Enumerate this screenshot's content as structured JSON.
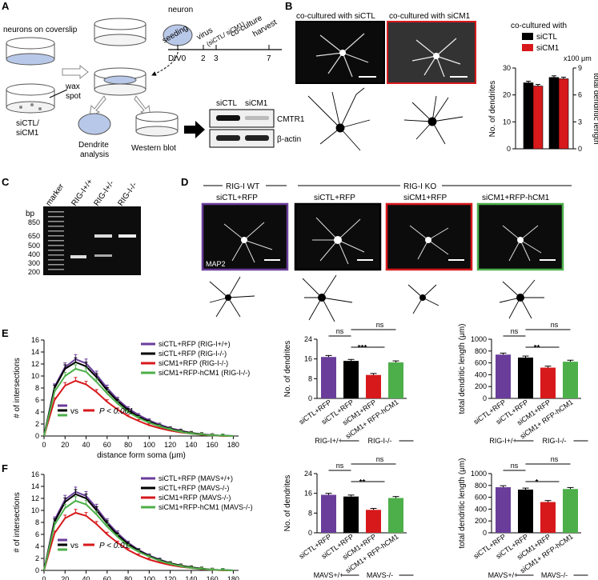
{
  "panels": {
    "A": "A",
    "B": "B",
    "C": "C",
    "D": "D",
    "E": "E",
    "F": "F"
  },
  "colors": {
    "purple": "#6a3d9a",
    "black": "#000000",
    "red": "#d7191c",
    "green": "#4daf4a"
  },
  "panelA": {
    "neurons_on_coverslip": "neurons on coverslip",
    "neuron": "neuron",
    "wax": "wax",
    "spot": "spot",
    "siCTL_siCM1_1": "siCTL/",
    "siCTL_siCM1_2": "siCM1",
    "dendrite_1": "Dendrite",
    "dendrite_2": "analysis",
    "western": "Western blot",
    "timeline": {
      "seeding": "seeding",
      "virus": "virus",
      "virus_sub": "(siCTL/ siCM1)",
      "coculture": "co-culture",
      "harvest": "harvest",
      "div0": "DIV0",
      "d2": "2",
      "d3": "3",
      "d7": "7"
    },
    "blot": {
      "siCTL": "siCTL",
      "siCM1": "siCM1",
      "cmtr1": "CMTR1",
      "actin": "β-actin"
    }
  },
  "panelB": {
    "img_left_title": "co-cultured with siCTL",
    "img_right_title": "co-cultured with siCM1",
    "legend_title": "co-cultured with",
    "x100": "x100 μm",
    "chart_data": {
      "type": "bar",
      "categories": [
        "No. of dendrites",
        "total dendritic length"
      ],
      "series": [
        {
          "name": "siCTL",
          "values": [
            24.5,
            26.5
          ]
        },
        {
          "name": "siCM1",
          "values": [
            23.3,
            26.0
          ]
        }
      ],
      "ylabel_left": "No. of dendrites",
      "ylabel_right": "total dendritic length",
      "left_ticks": [
        "0",
        "10",
        "20",
        "30"
      ],
      "right_ticks": [
        "0",
        "3",
        "6",
        "9"
      ],
      "ylim": [
        0,
        30
      ]
    }
  },
  "panelC": {
    "marker": "marker",
    "lane1": "RIG-I+/+",
    "lane2": "RIG-I+/-",
    "lane3": "RIG-I-/-",
    "bp": "bp",
    "sizes": [
      "850",
      "650",
      "500",
      "400",
      "300",
      "200"
    ]
  },
  "panelD": {
    "wt": "RIG-I WT",
    "ko": "RIG-I KO",
    "img1": "siCTL+RFP",
    "img2": "siCTL+RFP",
    "img3": "siCM1+RFP",
    "img4": "siCM1+RFP-hCM1",
    "map2": "MAP2"
  },
  "panelE": {
    "chart_data": {
      "type": "line",
      "x": [
        0,
        10,
        20,
        30,
        40,
        50,
        60,
        70,
        80,
        90,
        100,
        110,
        120,
        130,
        140,
        150,
        160,
        170,
        180
      ],
      "series": [
        {
          "name": "siCTL+RFP (RIG-I+/+)",
          "values": [
            0,
            8.2,
            11.5,
            12.8,
            12.1,
            10.2,
            8.0,
            6.1,
            4.6,
            3.5,
            2.6,
            1.9,
            1.3,
            0.9,
            0.5,
            0.3,
            0.15,
            0.05,
            0
          ]
        },
        {
          "name": "siCTL+RFP (RIG-I-/-)",
          "values": [
            0,
            8.0,
            11.2,
            12.3,
            11.6,
            9.8,
            7.6,
            5.8,
            4.3,
            3.2,
            2.4,
            1.7,
            1.2,
            0.8,
            0.5,
            0.3,
            0.1,
            0.05,
            0
          ]
        },
        {
          "name": "siCM1+RFP (RIG-I-/-)",
          "values": [
            0,
            6.0,
            8.4,
            9.2,
            8.6,
            7.3,
            5.7,
            4.4,
            3.3,
            2.5,
            1.8,
            1.3,
            0.9,
            0.6,
            0.4,
            0.2,
            0.1,
            0,
            0
          ]
        },
        {
          "name": "siCM1+RFP-hCM1 (RIG-I-/-)",
          "values": [
            0,
            7.4,
            10.0,
            11.2,
            10.7,
            9.0,
            7.1,
            5.4,
            4.0,
            3.0,
            2.2,
            1.6,
            1.1,
            0.7,
            0.4,
            0.25,
            0.1,
            0.05,
            0
          ]
        }
      ],
      "xlabel": "distance form soma (μm)",
      "ylabel": "# of intersections",
      "xticks": [
        "0",
        "20",
        "40",
        "60",
        "80",
        "100",
        "120",
        "140",
        "160",
        "180"
      ],
      "yticks": [
        "0",
        "2",
        "4",
        "6",
        "8",
        "10",
        "12",
        "14",
        "16"
      ],
      "xlim": [
        0,
        185
      ],
      "ylim": [
        0,
        16
      ]
    },
    "vs": "vs",
    "pval": "P < 0.001",
    "dend_chart": {
      "type": "bar",
      "categories": [
        "siCTL+RFP",
        "siCTL+RFP",
        "siCM1+RFP",
        "siCM1+ RFP-hCM1"
      ],
      "values": [
        16.8,
        15.2,
        9.5,
        14.6
      ],
      "ylabel": "No. of dendrites",
      "yticks": [
        "0",
        "8",
        "16",
        "24"
      ],
      "ylim": [
        0,
        24
      ]
    },
    "len_chart": {
      "type": "bar",
      "categories": [
        "siCTL+RFP",
        "siCTL+RFP",
        "siCM1+RFP",
        "siCM1+ RFP-hCM1"
      ],
      "values": [
        740,
        690,
        520,
        620
      ],
      "ylabel": "total dendritic length (μm)",
      "yticks": [
        "0",
        "200",
        "400",
        "600",
        "800",
        "1000"
      ],
      "ylim": [
        0,
        1000
      ]
    },
    "geno1": "RIG-I+/+",
    "geno2": "RIG-I-/-",
    "ns": "ns",
    "sig_dend": "***",
    "sig_len": "**"
  },
  "panelF": {
    "chart_data": {
      "type": "line",
      "x": [
        0,
        10,
        20,
        30,
        40,
        50,
        60,
        70,
        80,
        90,
        100,
        110,
        120,
        130,
        140,
        150,
        160,
        170,
        180
      ],
      "series": [
        {
          "name": "siCTL+RFP (MAVS+/+)",
          "values": [
            0,
            8.4,
            11.8,
            13.1,
            12.4,
            10.4,
            8.1,
            6.2,
            4.6,
            3.4,
            2.5,
            1.8,
            1.2,
            0.8,
            0.5,
            0.3,
            0.1,
            0.05,
            0
          ]
        },
        {
          "name": "siCTL+RFP (MAVS-/-)",
          "values": [
            0,
            8.1,
            11.4,
            12.7,
            12.0,
            10.0,
            7.8,
            5.9,
            4.4,
            3.3,
            2.4,
            1.7,
            1.2,
            0.8,
            0.5,
            0.3,
            0.1,
            0.05,
            0
          ]
        },
        {
          "name": "siCM1+RFP (MAVS-/-)",
          "values": [
            0,
            6.2,
            8.7,
            9.6,
            9.1,
            7.7,
            6.0,
            4.6,
            3.4,
            2.5,
            1.8,
            1.3,
            0.9,
            0.6,
            0.4,
            0.2,
            0.1,
            0,
            0
          ]
        },
        {
          "name": "siCM1+RFP-hCM1 (MAVS-/-)",
          "values": [
            0,
            7.6,
            10.4,
            11.6,
            11.0,
            9.3,
            7.3,
            5.6,
            4.1,
            3.1,
            2.3,
            1.6,
            1.1,
            0.7,
            0.4,
            0.25,
            0.1,
            0.05,
            0
          ]
        }
      ],
      "xlabel": "distance form soma (μm)",
      "ylabel": "# of intersections",
      "xticks": [
        "0",
        "20",
        "40",
        "60",
        "80",
        "100",
        "120",
        "140",
        "160",
        "180"
      ],
      "yticks": [
        "0",
        "2",
        "4",
        "6",
        "8",
        "10",
        "12",
        "14",
        "16"
      ],
      "xlim": [
        0,
        185
      ],
      "ylim": [
        0,
        16
      ]
    },
    "vs": "vs",
    "pval": "P < 0.01",
    "dend_chart": {
      "type": "bar",
      "categories": [
        "siCTL+RFP",
        "siCTL+RFP",
        "siCM1+RFP",
        "siCM1+ RFP-hCM1"
      ],
      "values": [
        15.4,
        14.7,
        9.3,
        14.1
      ],
      "ylabel": "No. of dendrites",
      "yticks": [
        "0",
        "8",
        "16",
        "24"
      ],
      "ylim": [
        0,
        24
      ]
    },
    "len_chart": {
      "type": "bar",
      "categories": [
        "siCTL+RFP",
        "siCTL+RFP",
        "siCM1+RFP",
        "siCM1+ RFP-hCM1"
      ],
      "values": [
        770,
        730,
        520,
        740
      ],
      "ylabel": "total dendritic length (μm)",
      "yticks": [
        "0",
        "200",
        "400",
        "600",
        "800",
        "1000"
      ],
      "ylim": [
        0,
        1000
      ]
    },
    "geno1": "MAVS+/+",
    "geno2": "MAVS-/-",
    "ns": "ns",
    "sig_dend": "**",
    "sig_len": "*"
  }
}
